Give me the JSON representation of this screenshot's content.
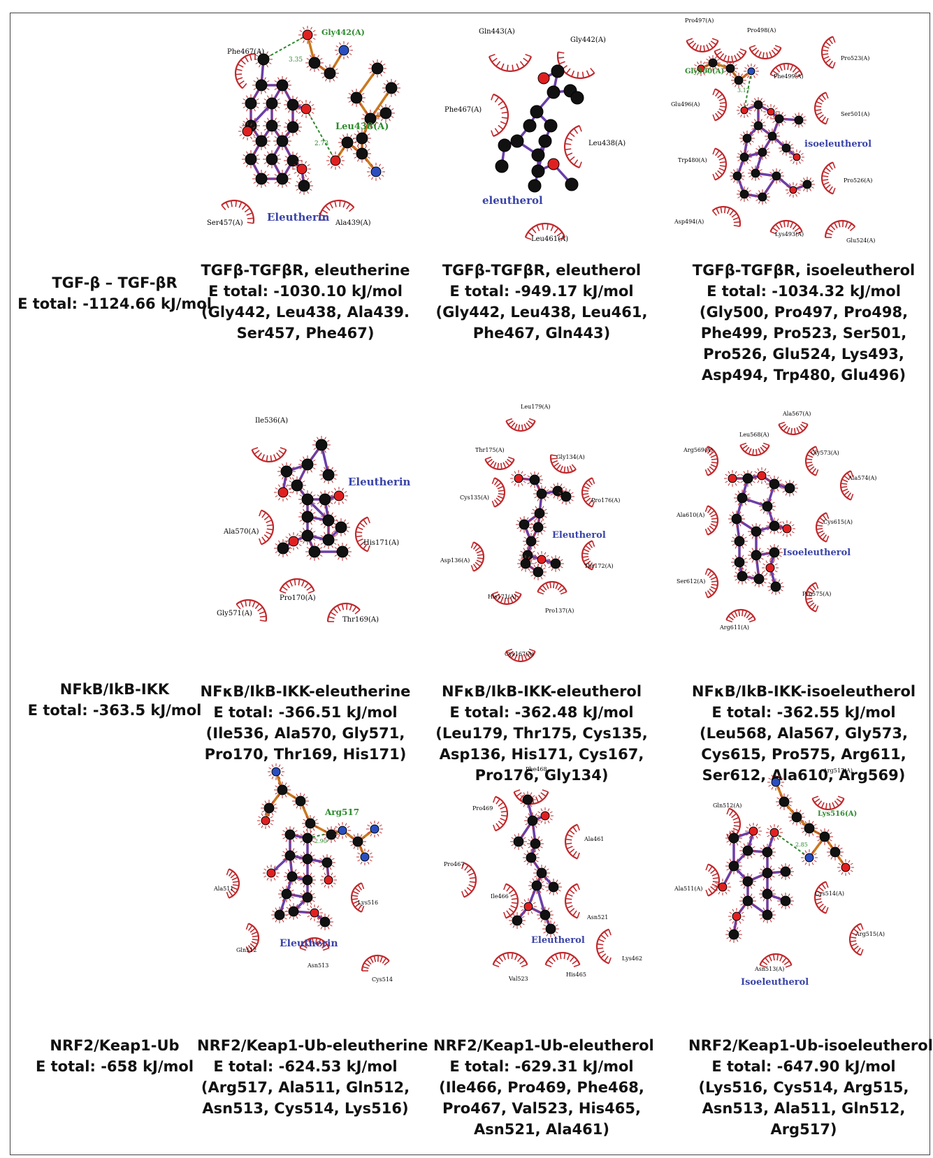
{
  "rows": [
    {
      "control": {
        "title": "TGF-β – TGF-βR",
        "energy": "E total: -1124.66 kJ/mol"
      },
      "panels": [
        {
          "ligand_label": "Eleutherin",
          "hbond_residues": [
            "Gly442(A)",
            "Leu438(A)"
          ],
          "hbond_distances": [
            "3.35",
            "2.73"
          ],
          "hydrophobic_residues": [
            "Phe467(A)",
            "Ser457(A)",
            "Ala439(A)"
          ],
          "caption": {
            "title": "TGFβ-TGFβR, eleutherine",
            "energy": "E total: -1030.10 kJ/mol",
            "residues": [
              "(Gly442, Leu438, Ala439.",
              "Ser457, Phe467)"
            ]
          }
        },
        {
          "ligand_label": "eleutherol",
          "hbond_residues": [],
          "hbond_distances": [],
          "hydrophobic_residues": [
            "Gln443(A)",
            "Gly442(A)",
            "Phe467(A)",
            "Leu438(A)",
            "Leu461(A)"
          ],
          "caption": {
            "title": "TGFβ-TGFβR, eleutherol",
            "energy": "E total: -949.17 kJ/mol",
            "residues": [
              "(Gly442, Leu438, Leu461,",
              "Phe467, Gln443)"
            ]
          }
        },
        {
          "ligand_label": "isoeleutherol",
          "hbond_residues": [
            "Gly500(A)"
          ],
          "hbond_distances": [
            "3.17"
          ],
          "hydrophobic_residues": [
            "Pro497(A)",
            "Pro498(A)",
            "Pro523(A)",
            "Phe499(A)",
            "Glu496(A)",
            "Ser501(A)",
            "Trp480(A)",
            "Pro526(A)",
            "Asp494(A)",
            "Lys493(A)",
            "Glu524(A)"
          ],
          "caption": {
            "title": "TGFβ-TGFβR, isoeleutherol",
            "energy": "E total: -1034.32 kJ/mol",
            "residues": [
              "(Gly500, Pro497, Pro498,",
              "Phe499, Pro523, Ser501,",
              "Pro526, Glu524, Lys493,",
              "Asp494, Trp480, Glu496)"
            ]
          }
        }
      ]
    },
    {
      "control": {
        "title": "NFkB/IkB-IKK",
        "energy": "E total: -363.5 kJ/mol"
      },
      "panels": [
        {
          "ligand_label": "Eleutherin",
          "hbond_residues": [],
          "hbond_distances": [],
          "hydrophobic_residues": [
            "Ile536(A)",
            "Ala570(A)",
            "His171(A)",
            "Pro170(A)",
            "Gly571(A)",
            "Thr169(A)"
          ],
          "caption": {
            "title": "NFκB/IkB-IKK-eleutherine",
            "energy": "E total: -366.51 kJ/mol",
            "residues": [
              "(Ile536, Ala570, Gly571,",
              "Pro170, Thr169, His171)"
            ]
          }
        },
        {
          "ligand_label": "Eleutherol",
          "hbond_residues": [],
          "hbond_distances": [],
          "hydrophobic_residues": [
            "Leu179(A)",
            "Thr175(A)",
            "Gly134(A)",
            "Cys135(A)",
            "Pro176(A)",
            "Asp136(A)",
            "Thr172(A)",
            "His171(A)",
            "Pro137(A)",
            "Cys167(A)"
          ],
          "caption": {
            "title": "NFκB/IkB-IKK-eleutherol",
            "energy": "E total: -362.48 kJ/mol",
            "residues": [
              "(Leu179, Thr175, Cys135,",
              "Asp136, His171, Cys167,",
              "Pro176, Gly134)"
            ]
          }
        },
        {
          "ligand_label": "Isoeleutherol",
          "hbond_residues": [],
          "hbond_distances": [],
          "hydrophobic_residues": [
            "Ala567(A)",
            "Leu568(A)",
            "Arg569(A)",
            "Gly573(A)",
            "Ala574(A)",
            "Ala610(A)",
            "Cys615(A)",
            "Ser612(A)",
            "Pro575(A)",
            "Arg611(A)"
          ],
          "caption": {
            "title": "NFκB/IkB-IKK-isoeleutherol",
            "energy": "E total: -362.55 kJ/mol",
            "residues": [
              "(Leu568, Ala567, Gly573,",
              "Cys615, Pro575, Arg611,",
              "Ser612, Ala610, Arg569)"
            ]
          }
        }
      ]
    },
    {
      "control": {
        "title": "NRF2/Keap1-Ub",
        "energy": "E total: -658 kJ/mol"
      },
      "panels": [
        {
          "ligand_label": "Eleutherin",
          "hbond_residues": [
            "Arg517"
          ],
          "hbond_distances": [
            "2.90"
          ],
          "hydrophobic_residues": [
            "Ala511",
            "Lys516",
            "Gln512",
            "Asn513",
            "Cys514"
          ],
          "caption": {
            "title": "NRF2/Keap1-Ub-eleutherine",
            "energy": "E total: -624.53 kJ/mol",
            "residues": [
              "(Arg517, Ala511, Gln512,",
              "Asn513, Cys514, Lys516)"
            ]
          }
        },
        {
          "ligand_label": "Eleutherol",
          "hbond_residues": [],
          "hbond_distances": [],
          "hydrophobic_residues": [
            "Phe468",
            "Pro469",
            "Ala461",
            "Pro467",
            "Ile466",
            "Asn521",
            "Lys462",
            "Val523",
            "His465"
          ],
          "caption": {
            "title": "NRF2/Keap1-Ub-eleutherol",
            "energy": "E total: -629.31 kJ/mol",
            "residues": [
              "(Ile466, Pro469, Phe468,",
              "Pro467, Val523, His465,",
              "Asn521, Ala461)"
            ]
          }
        },
        {
          "ligand_label": "Isoeleutherol",
          "hbond_residues": [
            "Lys516(A)"
          ],
          "hbond_distances": [
            "2.85"
          ],
          "hydrophobic_residues": [
            "Arg517(A)",
            "Gln512(A)",
            "Ala511(A)",
            "Cys514(A)",
            "Arg515(A)",
            "Asn513(A)"
          ],
          "caption": {
            "title": "NRF2/Keap1-Ub-isoeleutherol",
            "energy": "E total: -647.90 kJ/mol",
            "residues": [
              "(Lys516, Cys514, Arg515,",
              "Asn513, Ala511, Gln512,",
              "Arg517)"
            ]
          }
        }
      ]
    }
  ],
  "colors": {
    "bond": "#6a3ea8",
    "hbond_chain": "#c87a1e",
    "carbon": "#111111",
    "oxygen": "#e02020",
    "nitrogen": "#2a4ec0",
    "hydrophobic_arc": "#c0282c",
    "hbond_dash": "#2a8a2a",
    "ligand_label": "#3a44a8",
    "hbond_residue_label": "#2a8a2a"
  }
}
